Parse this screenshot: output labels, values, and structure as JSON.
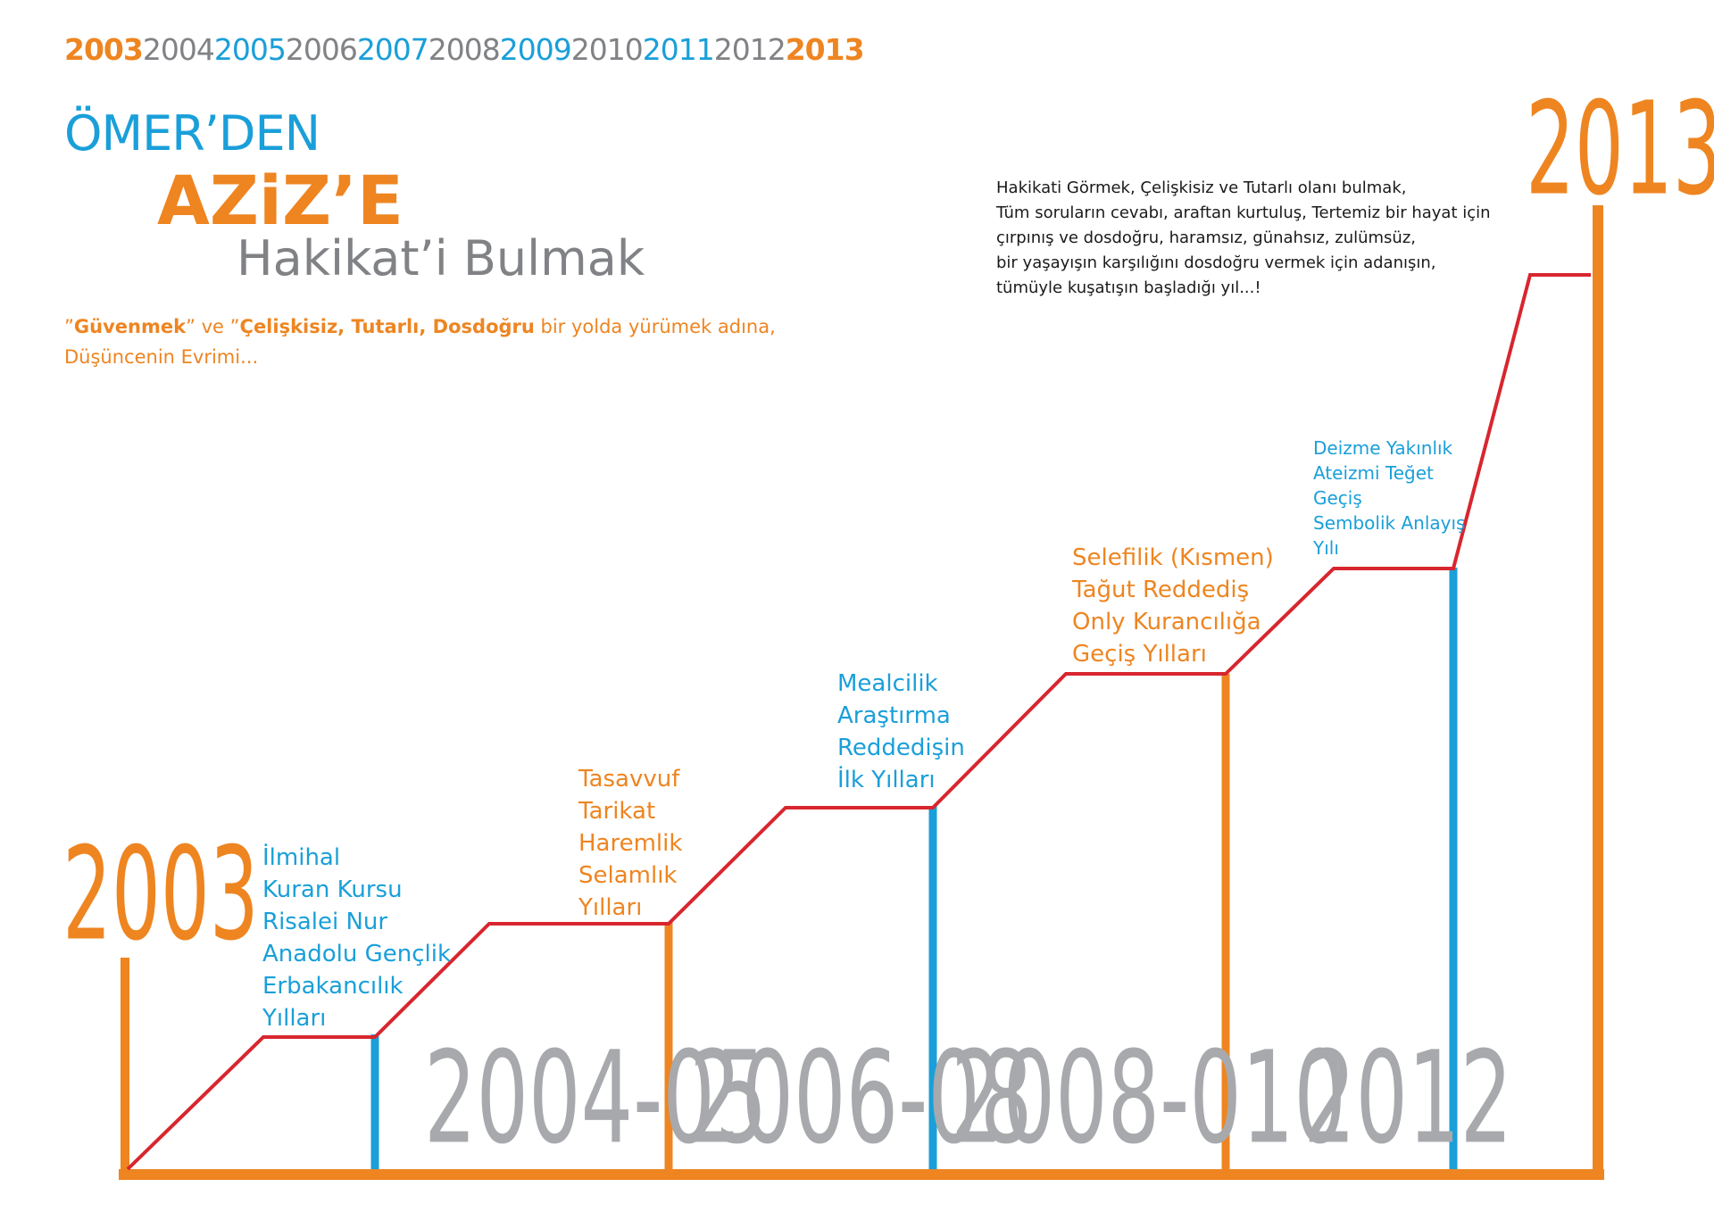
{
  "year_strip": [
    {
      "text": "2003",
      "color": "#ee8521",
      "bold": true
    },
    {
      "text": "2004",
      "color": "#808285",
      "bold": false
    },
    {
      "text": "2005",
      "color": "#1a9fd9",
      "bold": false
    },
    {
      "text": "2006",
      "color": "#808285",
      "bold": false
    },
    {
      "text": "2007",
      "color": "#1a9fd9",
      "bold": false
    },
    {
      "text": "2008",
      "color": "#808285",
      "bold": false
    },
    {
      "text": "2009",
      "color": "#1a9fd9",
      "bold": false
    },
    {
      "text": "2010",
      "color": "#808285",
      "bold": false
    },
    {
      "text": "2011",
      "color": "#1a9fd9",
      "bold": false
    },
    {
      "text": "2012",
      "color": "#808285",
      "bold": false
    },
    {
      "text": "2013",
      "color": "#ee8521",
      "bold": true
    }
  ],
  "title": {
    "line1": "ÖMER’DEN",
    "line2": "AZiZ’E",
    "line3": "Hakikat’i Bulmak"
  },
  "subtitle": {
    "q1": "”",
    "b1": "Güvenmek",
    "q2": "” ve ”",
    "b2": "Çelişkisiz, Tutarlı, Dosdoğru",
    "rest": " bir yolda yürümek adına,",
    "line2": "Düşüncenin Evrimi..."
  },
  "quote_lines": [
    "Hakikati Görmek, Çelişkisiz ve Tutarlı olanı bulmak,",
    "Tüm soruların cevabı, araftan kurtuluş, Tertemiz bir hayat için",
    "çırpınış ve dosdoğru, haramsız, günahsız, zulümsüz,",
    "bir yaşayışın karşılığını dosdoğru vermek için adanışın,",
    "tümüyle kuşatışın başladığı yıl...!"
  ],
  "start_year": "2003",
  "end_year": "2013",
  "stages": [
    {
      "lines": [
        "İlmihal",
        "Kuran Kursu",
        "Risalei Nur",
        "Anadolu Gençlik",
        "Erbakancılık",
        "Yılları"
      ],
      "color": "#1a9fd9"
    },
    {
      "lines": [
        "Tasavvuf",
        "Tarikat",
        "Haremlik",
        "Selamlık",
        "Yılları"
      ],
      "color": "#ee8521"
    },
    {
      "lines": [
        "Mealcilik",
        "Araştırma",
        "Reddedişin",
        "İlk Yılları"
      ],
      "color": "#1a9fd9"
    },
    {
      "lines": [
        "Selefilik (Kısmen)",
        "Tağut Reddediş",
        "Only Kurancılığa",
        "Geçiş Yılları"
      ],
      "color": "#ee8521"
    },
    {
      "lines": [
        "Deizme Yakınlık",
        "Ateizmi Teğet",
        "Geçiş",
        "Sembolik Anlayış",
        "Yılı"
      ],
      "color": "#1a9fd9"
    }
  ],
  "periods": [
    "2004-05",
    "2006-08",
    "2008-010",
    "2012"
  ],
  "colors": {
    "orange": "#ee8521",
    "blue": "#1a9fd9",
    "red": "#d8262e",
    "gray": "#a7a9ac",
    "dark_gray": "#808285"
  }
}
